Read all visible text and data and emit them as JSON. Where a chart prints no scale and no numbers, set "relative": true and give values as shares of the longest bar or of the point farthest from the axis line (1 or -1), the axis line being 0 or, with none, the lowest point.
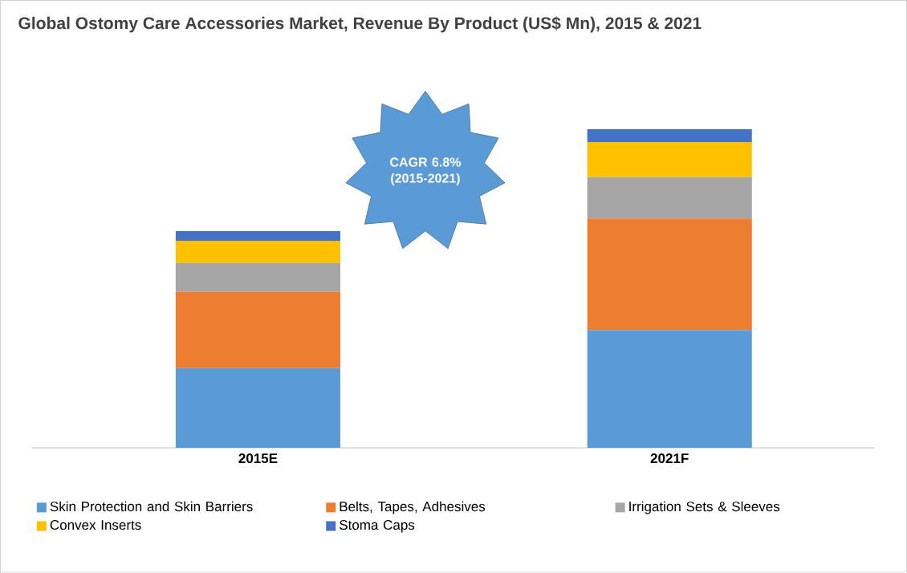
{
  "chart_data": {
    "type": "bar",
    "stacked": true,
    "relative": true,
    "title": "Global Ostomy Care Accessories Market, Revenue By Product (US$ Mn), 2015 & 2021",
    "categories": [
      "2015E",
      "2021F"
    ],
    "series": [
      {
        "name": "Skin Protection and Skin Barriers",
        "color": "#5b9bd5",
        "values": [
          0.25,
          0.37
        ]
      },
      {
        "name": "Belts, Tapes, Adhesives",
        "color": "#ed7d31",
        "values": [
          0.24,
          0.35
        ]
      },
      {
        "name": "Irrigation Sets & Sleeves",
        "color": "#a5a5a5",
        "values": [
          0.09,
          0.13
        ]
      },
      {
        "name": "Convex Inserts",
        "color": "#ffc000",
        "values": [
          0.07,
          0.11
        ]
      },
      {
        "name": "Stoma Caps",
        "color": "#4472c4",
        "values": [
          0.03,
          0.04
        ]
      }
    ],
    "annotations": [
      "CAGR 6.8% (2015-2021)"
    ],
    "legend": "bottom"
  }
}
